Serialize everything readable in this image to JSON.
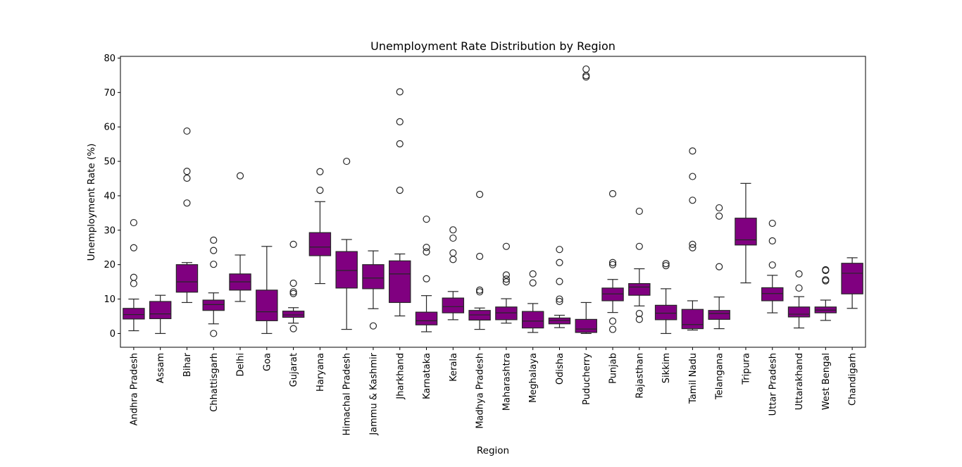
{
  "chart_data": {
    "type": "box",
    "title": "Unemployment Rate Distribution by Region",
    "xlabel": "Region",
    "ylabel": "Unemployment Rate (%)",
    "ylim": [
      -4,
      80.5
    ],
    "yticks": [
      0,
      10,
      20,
      30,
      40,
      50,
      60,
      70,
      80
    ],
    "grid": false,
    "box_color": "#800080",
    "categories": [
      "Andhra Pradesh",
      "Assam",
      "Bihar",
      "Chhattisgarh",
      "Delhi",
      "Goa",
      "Gujarat",
      "Haryana",
      "Himachal Pradesh",
      "Jammu & Kashmir",
      "Jharkhand",
      "Karnataka",
      "Kerala",
      "Madhya Pradesh",
      "Maharashtra",
      "Meghalaya",
      "Odisha",
      "Puducherry",
      "Punjab",
      "Rajasthan",
      "Sikkim",
      "Tamil Nadu",
      "Telangana",
      "Tripura",
      "Uttar Pradesh",
      "Uttarakhand",
      "West Bengal",
      "Chandigarh"
    ],
    "boxes": [
      {
        "whislo": 0.8,
        "q1": 4.2,
        "med": 5.5,
        "q3": 7.3,
        "whishi": 10.0,
        "fliers": [
          32.2,
          24.9,
          16.3,
          14.5
        ]
      },
      {
        "whislo": 0.0,
        "q1": 4.3,
        "med": 5.7,
        "q3": 9.3,
        "whishi": 11.1,
        "fliers": []
      },
      {
        "whislo": 9.0,
        "q1": 12.0,
        "med": 15.0,
        "q3": 20.0,
        "whishi": 20.6,
        "fliers": [
          58.8,
          47.1,
          45.1,
          37.9
        ]
      },
      {
        "whislo": 2.8,
        "q1": 6.7,
        "med": 8.4,
        "q3": 9.7,
        "whishi": 11.8,
        "fliers": [
          27.1,
          24.1,
          20.1,
          0.0
        ]
      },
      {
        "whislo": 9.3,
        "q1": 12.6,
        "med": 15.0,
        "q3": 17.3,
        "whishi": 22.8,
        "fliers": [
          45.8
        ]
      },
      {
        "whislo": 0.0,
        "q1": 3.7,
        "med": 6.3,
        "q3": 12.6,
        "whishi": 25.3,
        "fliers": []
      },
      {
        "whislo": 3.0,
        "q1": 4.7,
        "med": 5.4,
        "q3": 6.5,
        "whishi": 7.5,
        "fliers": [
          25.9,
          14.6,
          12.1,
          11.6,
          1.4
        ]
      },
      {
        "whislo": 14.5,
        "q1": 22.6,
        "med": 25.1,
        "q3": 29.3,
        "whishi": 38.3,
        "fliers": [
          47.0,
          41.6
        ]
      },
      {
        "whislo": 1.2,
        "q1": 13.2,
        "med": 18.3,
        "q3": 23.8,
        "whishi": 27.3,
        "fliers": [
          50.0
        ]
      },
      {
        "whislo": 7.2,
        "q1": 13.0,
        "med": 16.1,
        "q3": 20.0,
        "whishi": 24.0,
        "fliers": [
          2.2
        ]
      },
      {
        "whislo": 5.1,
        "q1": 9.0,
        "med": 17.3,
        "q3": 21.1,
        "whishi": 23.1,
        "fliers": [
          70.2,
          61.5,
          55.1,
          41.6
        ]
      },
      {
        "whislo": 0.5,
        "q1": 2.5,
        "med": 3.7,
        "q3": 6.2,
        "whishi": 11.0,
        "fliers": [
          33.2,
          25.0,
          23.7,
          15.9
        ]
      },
      {
        "whislo": 4.0,
        "q1": 6.0,
        "med": 7.8,
        "q3": 10.3,
        "whishi": 12.2,
        "fliers": [
          30.1,
          27.7,
          23.4,
          21.5
        ]
      },
      {
        "whislo": 1.2,
        "q1": 3.9,
        "med": 5.4,
        "q3": 6.7,
        "whishi": 7.4,
        "fliers": [
          40.4,
          22.4,
          12.6,
          12.1
        ]
      },
      {
        "whislo": 3.0,
        "q1": 4.0,
        "med": 6.0,
        "q3": 7.7,
        "whishi": 10.1,
        "fliers": [
          25.3,
          17.0,
          15.8,
          15.0
        ]
      },
      {
        "whislo": 0.3,
        "q1": 1.6,
        "med": 3.6,
        "q3": 6.4,
        "whishi": 8.7,
        "fliers": [
          17.3,
          14.7
        ]
      },
      {
        "whislo": 1.7,
        "q1": 2.8,
        "med": 3.8,
        "q3": 4.5,
        "whishi": 5.3,
        "fliers": [
          24.4,
          20.6,
          15.1,
          10.0,
          9.3
        ]
      },
      {
        "whislo": 0.0,
        "q1": 0.3,
        "med": 1.3,
        "q3": 4.1,
        "whishi": 9.0,
        "fliers": [
          76.8,
          74.9,
          74.5
        ]
      },
      {
        "whislo": 6.1,
        "q1": 9.5,
        "med": 11.5,
        "q3": 13.2,
        "whishi": 15.7,
        "fliers": [
          40.6,
          20.6,
          20.0,
          3.6,
          1.2
        ]
      },
      {
        "whislo": 8.0,
        "q1": 11.1,
        "med": 13.5,
        "q3": 14.5,
        "whishi": 18.8,
        "fliers": [
          35.5,
          25.3,
          5.8,
          4.1
        ]
      },
      {
        "whislo": 0.0,
        "q1": 4.0,
        "med": 5.9,
        "q3": 8.2,
        "whishi": 13.0,
        "fliers": [
          20.3,
          19.7
        ]
      },
      {
        "whislo": 1.0,
        "q1": 1.4,
        "med": 2.6,
        "q3": 7.0,
        "whishi": 9.5,
        "fliers": [
          53.0,
          45.6,
          38.7,
          25.9,
          24.9
        ]
      },
      {
        "whislo": 1.4,
        "q1": 4.1,
        "med": 5.8,
        "q3": 6.7,
        "whishi": 10.6,
        "fliers": [
          36.5,
          34.1,
          19.4
        ]
      },
      {
        "whislo": 14.7,
        "q1": 25.7,
        "med": 27.2,
        "q3": 33.5,
        "whishi": 43.6,
        "fliers": []
      },
      {
        "whislo": 6.0,
        "q1": 9.5,
        "med": 11.6,
        "q3": 13.3,
        "whishi": 16.9,
        "fliers": [
          32.0,
          26.9,
          19.9
        ]
      },
      {
        "whislo": 1.6,
        "q1": 4.8,
        "med": 5.6,
        "q3": 7.7,
        "whishi": 10.7,
        "fliers": [
          17.3,
          13.2
        ]
      },
      {
        "whislo": 3.8,
        "q1": 6.0,
        "med": 6.8,
        "q3": 7.7,
        "whishi": 9.7,
        "fliers": [
          18.5,
          18.3,
          15.6,
          15.3
        ]
      },
      {
        "whislo": 7.3,
        "q1": 11.5,
        "med": 17.5,
        "q3": 20.4,
        "whishi": 22.0,
        "fliers": []
      }
    ]
  }
}
